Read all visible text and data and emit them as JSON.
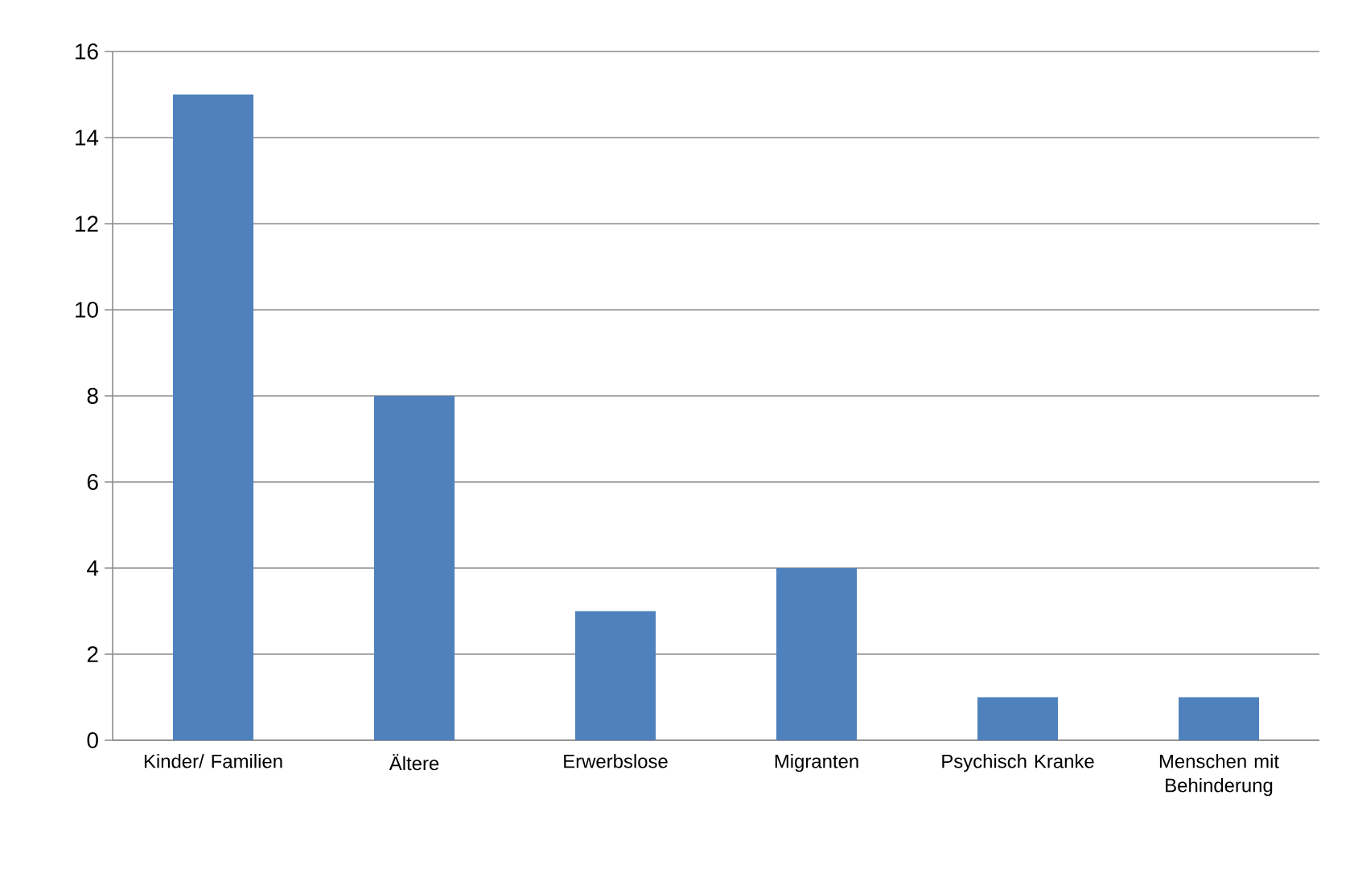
{
  "chart_data": {
    "type": "bar",
    "categories": [
      "Kinder/ Familien",
      "Ältere",
      "Erwerbslose",
      "Migranten",
      "Psychisch Kranke",
      "Menschen mit Behinderung"
    ],
    "values": [
      15,
      8,
      3,
      4,
      1,
      1
    ],
    "color": "#4f81bd",
    "ylim": [
      0,
      16
    ],
    "yticks": [
      0,
      2,
      4,
      6,
      8,
      10,
      12,
      14,
      16
    ],
    "grid": "y"
  }
}
